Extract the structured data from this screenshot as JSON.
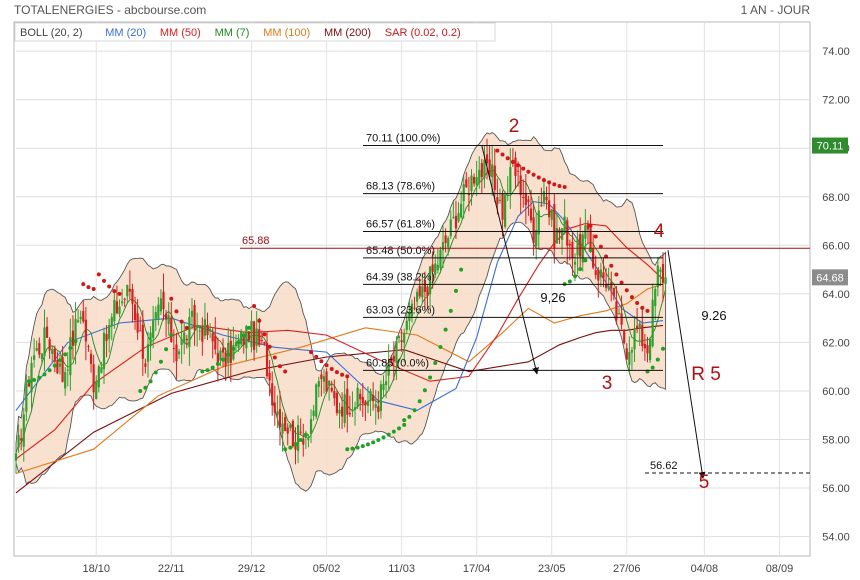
{
  "header": {
    "title": "TOTALENERGIES - abcbourse.com",
    "period": "1 AN - JOUR"
  },
  "legend": [
    {
      "label": "BOLL (20, 2)",
      "color": "#444444"
    },
    {
      "label": "MM (20)",
      "color": "#3a6fd8"
    },
    {
      "label": "MM (50)",
      "color": "#d82020"
    },
    {
      "label": "MM (7)",
      "color": "#1f8a1f"
    },
    {
      "label": "MM (100)",
      "color": "#e07a1a"
    },
    {
      "label": "MM (200)",
      "color": "#7a0f0f"
    },
    {
      "label": "SAR (0.02, 0.2)",
      "color": "#c81818"
    }
  ],
  "colors": {
    "up": "#2ea02e",
    "down": "#d42020",
    "boll_fill": "#f8dcc8",
    "boll_line": "#555555",
    "sar_up": "#22a022",
    "sar_down": "#d01818",
    "fib": "#111111",
    "resistance": "#a01010",
    "last_price_bg": "#2e8b2e",
    "current_price_bg": "#8c8c8c"
  },
  "chart_data": {
    "type": "candlestick",
    "title": "TOTALENERGIES",
    "ylim": [
      53.2,
      75.2
    ],
    "y_ticks": [
      54,
      56,
      58,
      60,
      62,
      64,
      66,
      68,
      70,
      72,
      74
    ],
    "y_tick_labels": [
      "54.00",
      "56.00",
      "58.00",
      "60.00",
      "62.00",
      "64.00",
      "66.00",
      "68.00",
      "70.00",
      "72.00",
      "74.00"
    ],
    "x_tick_labels": [
      "18/10",
      "22/11",
      "29/12",
      "05/02",
      "11/03",
      "17/04",
      "23/05",
      "27/06",
      "04/08",
      "08/09"
    ],
    "current_price": "64.68",
    "last_price": "70.11",
    "series": [
      {
        "name": "MM (200)",
        "x": [
          0,
          30,
          60,
          90,
          120,
          150,
          175,
          198,
          210,
          218,
          224,
          230,
          236,
          242,
          250
        ],
        "y": [
          55.8,
          58.3,
          59.9,
          60.8,
          61.4,
          61.7,
          60.8,
          61.2,
          61.9,
          62.2,
          62.4,
          62.5,
          62.5,
          62.6,
          62.7
        ]
      },
      {
        "name": "MM (100)",
        "x": [
          0,
          30,
          55,
          80,
          110,
          135,
          155,
          175,
          188,
          198,
          208,
          218,
          228,
          236,
          244,
          250
        ],
        "y": [
          56.6,
          57.6,
          59.8,
          61.0,
          61.8,
          62.6,
          62.3,
          61.2,
          62.4,
          63.4,
          62.8,
          63.1,
          63.3,
          63.6,
          64.2,
          64.4
        ]
      },
      {
        "name": "MM (50)",
        "x": [
          0,
          15,
          30,
          50,
          70,
          90,
          105,
          120,
          140,
          160,
          175,
          186,
          194,
          202,
          208,
          214,
          220,
          228,
          236,
          244,
          250
        ],
        "y": [
          57.2,
          58.4,
          60.3,
          61.8,
          62.7,
          62.4,
          62.5,
          62.3,
          61.3,
          60.4,
          60.6,
          62.3,
          63.8,
          65.2,
          66.1,
          66.7,
          66.9,
          66.8,
          65.9,
          65.2,
          64.6
        ]
      },
      {
        "name": "MM (20)",
        "x": [
          0,
          20,
          40,
          60,
          80,
          100,
          120,
          140,
          155,
          170,
          178,
          186,
          194,
          200,
          206,
          212,
          218,
          226,
          234,
          242,
          250
        ],
        "y": [
          59.2,
          62.0,
          62.8,
          63.0,
          62.3,
          61.8,
          61.6,
          59.6,
          59.2,
          60.1,
          62.2,
          65.3,
          67.2,
          67.8,
          67.7,
          67.0,
          66.1,
          64.8,
          63.4,
          62.8,
          62.9
        ]
      }
    ],
    "fibonacci": [
      {
        "label": "70.11  (100.0%)",
        "value": 70.11
      },
      {
        "label": "68.13  (78.6%)",
        "value": 68.13
      },
      {
        "label": "66.57  (61.8%)",
        "value": 66.57
      },
      {
        "label": "65.48  (50.0%)",
        "value": 65.48
      },
      {
        "label": "64.39  (38.2%)",
        "value": 64.39
      },
      {
        "label": "63.03  (23.6%)",
        "value": 63.03
      },
      {
        "label": "60.85  (0.0%)",
        "value": 60.85
      }
    ],
    "resistance": {
      "label": "65.88",
      "value": 65.88
    },
    "target": {
      "label": "56.62",
      "value": 56.62
    },
    "annotations": {
      "wave_2": "2",
      "wave_3": "3",
      "wave_4": "4",
      "wave_5": "5",
      "r5": "R 5",
      "move_a": "9,26",
      "move_b": "9.26"
    }
  }
}
